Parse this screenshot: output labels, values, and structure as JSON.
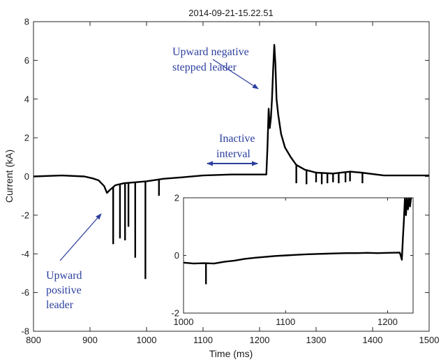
{
  "chart_data": [
    {
      "type": "line",
      "title": "2014-09-21-15.22.51",
      "xlabel": "Time (ms)",
      "ylabel": "Current (kA)",
      "xlim": [
        800,
        1500
      ],
      "ylim": [
        -8,
        8
      ],
      "xticks": [
        800,
        900,
        1000,
        1100,
        1200,
        1300,
        1400,
        1500
      ],
      "yticks": [
        -8,
        -6,
        -4,
        -2,
        0,
        2,
        4,
        6,
        8
      ],
      "grid": false,
      "series_color": "#000000",
      "annotation_color": "#2b3f9e",
      "baseline": [
        [
          800,
          0.0
        ],
        [
          850,
          0.05
        ],
        [
          890,
          0.0
        ],
        [
          905,
          -0.1
        ],
        [
          915,
          -0.2
        ],
        [
          925,
          -0.5
        ],
        [
          930,
          -0.85
        ],
        [
          935,
          -0.7
        ],
        [
          945,
          -0.45
        ],
        [
          960,
          -0.35
        ],
        [
          980,
          -0.3
        ],
        [
          1000,
          -0.25
        ],
        [
          1030,
          -0.12
        ],
        [
          1060,
          -0.05
        ],
        [
          1100,
          0.05
        ],
        [
          1150,
          0.1
        ],
        [
          1190,
          0.1
        ],
        [
          1212,
          0.1
        ],
        [
          1214,
          1.5
        ],
        [
          1216,
          3.5
        ],
        [
          1218,
          2.5
        ],
        [
          1220,
          3.0
        ],
        [
          1222,
          4.0
        ],
        [
          1224,
          5.5
        ],
        [
          1226,
          6.8
        ],
        [
          1228,
          5.8
        ],
        [
          1230,
          4.0
        ],
        [
          1233,
          3.2
        ],
        [
          1238,
          2.2
        ],
        [
          1245,
          1.5
        ],
        [
          1255,
          1.0
        ],
        [
          1265,
          0.6
        ],
        [
          1280,
          0.35
        ],
        [
          1300,
          0.2
        ],
        [
          1330,
          0.15
        ],
        [
          1360,
          0.25
        ],
        [
          1380,
          0.2
        ],
        [
          1420,
          0.05
        ],
        [
          1460,
          0.05
        ],
        [
          1500,
          0.05
        ]
      ],
      "spikes": [
        [
          941,
          -3.5
        ],
        [
          953,
          -3.2
        ],
        [
          962,
          -3.3
        ],
        [
          968,
          -2.6
        ],
        [
          980,
          -4.2
        ],
        [
          998,
          -5.3
        ],
        [
          1022,
          -1.0
        ],
        [
          1265,
          -0.35
        ],
        [
          1283,
          -0.4
        ],
        [
          1300,
          -0.3
        ],
        [
          1310,
          -0.4
        ],
        [
          1320,
          -0.35
        ],
        [
          1330,
          -0.3
        ],
        [
          1340,
          -0.35
        ],
        [
          1352,
          -0.3
        ],
        [
          1360,
          -0.25
        ],
        [
          1382,
          -0.35
        ]
      ],
      "annotations": [
        {
          "lines": [
            "Upward negative",
            "stepped leader"
          ]
        },
        {
          "lines": [
            "Inactive",
            "interval"
          ]
        },
        {
          "lines": [
            "Upward",
            "positive",
            "leader"
          ]
        }
      ]
    },
    {
      "type": "line",
      "xlim": [
        1000,
        1225
      ],
      "ylim": [
        -2,
        2
      ],
      "xticks": [
        1000,
        1100,
        1200
      ],
      "yticks": [
        -2,
        0,
        2
      ],
      "series_color": "#000000",
      "baseline": [
        [
          1000,
          -0.25
        ],
        [
          1010,
          -0.28
        ],
        [
          1020,
          -0.27
        ],
        [
          1030,
          -0.28
        ],
        [
          1040,
          -0.22
        ],
        [
          1050,
          -0.18
        ],
        [
          1060,
          -0.12
        ],
        [
          1070,
          -0.08
        ],
        [
          1080,
          -0.05
        ],
        [
          1090,
          -0.02
        ],
        [
          1100,
          0.0
        ],
        [
          1110,
          0.02
        ],
        [
          1120,
          0.04
        ],
        [
          1130,
          0.05
        ],
        [
          1140,
          0.06
        ],
        [
          1150,
          0.07
        ],
        [
          1160,
          0.08
        ],
        [
          1170,
          0.08
        ],
        [
          1180,
          0.09
        ],
        [
          1190,
          0.08
        ],
        [
          1200,
          0.09
        ],
        [
          1212,
          0.1
        ],
        [
          1214,
          -0.15
        ],
        [
          1215,
          0.6
        ],
        [
          1216,
          1.2
        ],
        [
          1217,
          2.0
        ],
        [
          1218,
          1.4
        ],
        [
          1219,
          2.0
        ],
        [
          1220,
          1.6
        ],
        [
          1221,
          2.0
        ],
        [
          1222,
          1.7
        ],
        [
          1223,
          2.0
        ]
      ],
      "spikes": [
        [
          1022,
          -1.0
        ]
      ]
    }
  ]
}
